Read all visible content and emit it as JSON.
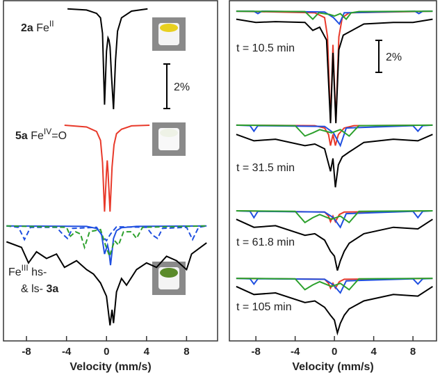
{
  "chart_data": [
    {
      "type": "line",
      "xlabel": "Velocity (mm/s)",
      "xlim": [
        -10.3,
        11.1
      ],
      "xticks": [
        -8,
        -4,
        0,
        4,
        8
      ],
      "ylim": [
        0,
        15.3
      ],
      "scale_bar": {
        "value": 2,
        "label": "2%"
      },
      "labels": [
        [
          {
            "t": "2a",
            "style": "bold"
          },
          {
            "t": " Fe"
          },
          {
            "t": "II",
            "style": "sup"
          }
        ],
        [
          {
            "t": "5a",
            "style": "bold"
          },
          {
            "t": " Fe"
          },
          {
            "t": "IV",
            "style": "sup"
          },
          {
            "t": "=O"
          }
        ],
        [
          {
            "t": "Fe"
          },
          {
            "t": "III",
            "style": "sup"
          },
          {
            "t": " hs-"
          }
        ],
        [
          {
            "t": "& ls- "
          },
          {
            "t": "3a",
            "style": "bold"
          }
        ]
      ],
      "series": [
        {
          "color": "#000000",
          "x": [
            -3.9,
            -2,
            -1,
            -0.6,
            -0.4,
            -0.2,
            0,
            0.15,
            0.25,
            0.35,
            0.5,
            0.7,
            0.9,
            1.1,
            1.5,
            2.5,
            4.1
          ],
          "values": [
            14.9,
            14.85,
            14.7,
            14.5,
            13.8,
            10.6,
            13.0,
            13.6,
            13.5,
            13.2,
            11.9,
            10.4,
            12.6,
            13.9,
            14.5,
            14.8,
            14.9
          ]
        },
        {
          "color": "#e8392a",
          "x": [
            -4.2,
            -2,
            -1,
            -0.6,
            -0.4,
            -0.2,
            0,
            0.07,
            0.15,
            0.35,
            0.55,
            0.75,
            1,
            1.5,
            2.5,
            4.3
          ],
          "values": [
            9.68,
            9.6,
            9.4,
            9.0,
            8.0,
            5.8,
            7.6,
            8.1,
            7.6,
            5.8,
            7.8,
            8.8,
            9.3,
            9.5,
            9.65,
            9.68
          ]
        },
        {
          "color": "#1f4fe0",
          "x": [
            -10,
            -2,
            -1,
            -0.5,
            -0.2,
            0.1,
            0.25,
            0.4,
            0.7,
            1,
            1.5,
            3,
            10
          ],
          "values": [
            5.16,
            5.14,
            5.05,
            4.8,
            3.9,
            4.3,
            4.0,
            3.4,
            4.6,
            4.95,
            5.08,
            5.14,
            5.16
          ]
        },
        {
          "color": "#1f4fe0",
          "dash": true,
          "x": [
            -10,
            -8.8,
            -8.2,
            -7.6,
            -5,
            -4.4,
            -3.9,
            -3.4,
            -1,
            -0.4,
            0,
            0.4,
            1,
            4,
            4.6,
            5.1,
            5.6,
            8,
            8.6,
            9.2,
            10
          ],
          "values": [
            5.16,
            5.1,
            4.55,
            5.1,
            5.1,
            4.8,
            4.6,
            5.05,
            5.1,
            4.7,
            4.5,
            4.8,
            5.12,
            5.1,
            4.75,
            4.6,
            5.05,
            5.1,
            4.55,
            5.1,
            5.16
          ]
        },
        {
          "color": "#2ca02c",
          "dash": true,
          "x": [
            -10,
            -4,
            -3.6,
            -3.1,
            -2.6,
            -2.2,
            -1.7,
            -0.6,
            -0.1,
            0.3,
            0.8,
            1.2,
            1.7,
            2.5,
            3,
            3.6,
            10
          ],
          "values": [
            5.16,
            5.1,
            4.7,
            4.9,
            4.8,
            4.2,
            4.9,
            5.0,
            4.3,
            3.8,
            4.5,
            4.3,
            4.9,
            4.9,
            4.6,
            5.1,
            5.16
          ]
        },
        {
          "color": "#000000",
          "x": [
            -10,
            -8.5,
            -7.8,
            -7,
            -6,
            -5,
            -4.2,
            -3,
            -2,
            -1.3,
            -0.6,
            0,
            0.35,
            0.55,
            0.7,
            1,
            1.5,
            2,
            3,
            4,
            5,
            6,
            7,
            8,
            8.5,
            10
          ],
          "values": [
            4.45,
            4.2,
            3.5,
            4.0,
            3.7,
            3.9,
            3.3,
            3.6,
            3.2,
            3.0,
            2.6,
            2.0,
            0.7,
            1.4,
            0.8,
            2.2,
            2.8,
            2.5,
            3.2,
            3.5,
            3.3,
            3.8,
            3.6,
            3.2,
            3.9,
            4.4
          ]
        }
      ]
    },
    {
      "type": "line",
      "xlabel": "Velocity (mm/s)",
      "xlim": [
        -10.7,
        10.4
      ],
      "xticks": [
        -8,
        -4,
        0,
        4,
        8
      ],
      "ylim": [
        0,
        21.3
      ],
      "scale_bar": {
        "value": 2,
        "label": "2%"
      },
      "labels": [
        [
          {
            "t": "t = 10.5 min"
          }
        ],
        [
          {
            "t": "t = 31.5 min"
          }
        ],
        [
          {
            "t": "t = 61.8 min"
          }
        ],
        [
          {
            "t": "t = 105 min"
          }
        ]
      ],
      "series": [
        {
          "color": "#e8392a",
          "x": [
            -10,
            -2,
            -1,
            -0.7,
            -0.4,
            -0.15,
            0.15,
            0.45,
            0.8,
            1.5,
            10
          ],
          "values": [
            20.6,
            20.5,
            20.2,
            19,
            13.7,
            18.5,
            13.7,
            19,
            20.2,
            20.5,
            20.6
          ]
        },
        {
          "color": "#1f4fe0",
          "x": [
            -10,
            -8.2,
            -7.8,
            -7.4,
            -1,
            -0.1,
            0.5,
            1,
            8.2,
            8.6,
            9,
            10
          ],
          "values": [
            20.6,
            20.6,
            20.45,
            20.6,
            20.55,
            20.2,
            19.8,
            20.5,
            20.6,
            20.45,
            20.6,
            20.6
          ]
        },
        {
          "color": "#2ca02c",
          "x": [
            -10,
            -3,
            -2.2,
            -1.6,
            -0.5,
            0,
            0.6,
            1.2,
            1.7,
            2.5,
            10
          ],
          "values": [
            20.6,
            20.58,
            20.1,
            20.5,
            20.4,
            20.3,
            20.45,
            20.1,
            20.5,
            20.58,
            20.6
          ]
        },
        {
          "color": "#000000",
          "x": [
            -10,
            -8,
            -6,
            -3,
            -2.2,
            -1.5,
            -0.8,
            -0.4,
            -0.15,
            0.15,
            0.45,
            0.9,
            1.5,
            3,
            6,
            8,
            10
          ],
          "values": [
            20.1,
            19.9,
            19.95,
            19.9,
            19.4,
            19.6,
            18.8,
            13.6,
            18.0,
            13.6,
            18.2,
            19.1,
            19.3,
            19.8,
            19.9,
            19.9,
            20.1
          ]
        },
        {
          "color": "#e8392a",
          "x": [
            -10,
            -2,
            -1,
            -0.6,
            -0.4,
            -0.15,
            0.1,
            0.4,
            1,
            2,
            10
          ],
          "values": [
            13.48,
            13.45,
            13.3,
            12.9,
            12.2,
            12.9,
            12.2,
            12.9,
            13.3,
            13.45,
            13.48
          ]
        },
        {
          "color": "#1f4fe0",
          "x": [
            -10,
            -8.6,
            -8.2,
            -7.8,
            -1,
            -0.1,
            0.6,
            1.2,
            8,
            8.5,
            9,
            10
          ],
          "values": [
            13.48,
            13.45,
            13.1,
            13.45,
            13.4,
            13.0,
            12.2,
            13.3,
            13.45,
            13.1,
            13.45,
            13.48
          ]
        },
        {
          "color": "#2ca02c",
          "x": [
            -10,
            -4,
            -3,
            -2.2,
            -1.5,
            -0.3,
            0.6,
            1.5,
            2.5,
            10
          ],
          "values": [
            13.48,
            13.45,
            12.8,
            13.0,
            13.2,
            13.0,
            13.2,
            12.8,
            13.45,
            13.48
          ]
        },
        {
          "color": "#000000",
          "x": [
            -10,
            -8.2,
            -6,
            -3,
            -2,
            -1,
            -0.4,
            -0.15,
            0.1,
            0.4,
            0.8,
            1.5,
            3,
            6,
            8.5,
            10
          ],
          "values": [
            12.9,
            12.5,
            12.6,
            12.2,
            12.3,
            12.0,
            10.6,
            11.4,
            9.6,
            11.0,
            11.5,
            11.8,
            12.4,
            12.6,
            12.5,
            12.9
          ]
        },
        {
          "color": "#e8392a",
          "x": [
            -10,
            -1,
            -0.6,
            -0.4,
            -0.15,
            0.1,
            0.5,
            1,
            10
          ],
          "values": [
            8.13,
            8.05,
            7.8,
            7.45,
            7.8,
            7.45,
            7.9,
            8.05,
            8.13
          ]
        },
        {
          "color": "#1f4fe0",
          "x": [
            -10,
            -8.6,
            -8.2,
            -7.8,
            -1,
            -0.1,
            0.6,
            1.2,
            8,
            8.5,
            9,
            10
          ],
          "values": [
            8.13,
            8.1,
            7.7,
            8.1,
            8.05,
            7.7,
            7.1,
            7.95,
            8.1,
            7.7,
            8.1,
            8.13
          ]
        },
        {
          "color": "#2ca02c",
          "x": [
            -10,
            -4,
            -3,
            -2.2,
            -1.5,
            -0.3,
            0.6,
            1.5,
            2.5,
            10
          ],
          "values": [
            8.13,
            8.1,
            7.4,
            7.7,
            7.9,
            7.6,
            7.8,
            7.4,
            8.1,
            8.13
          ]
        },
        {
          "color": "#000000",
          "x": [
            -10,
            -8.2,
            -6,
            -3,
            -2,
            -1,
            -0.4,
            0,
            0.3,
            0.6,
            1,
            1.5,
            3,
            6,
            8.5,
            10
          ],
          "values": [
            7.6,
            7.1,
            7.2,
            6.6,
            6.7,
            6.3,
            5.6,
            5.3,
            4.4,
            5.0,
            5.6,
            6.1,
            6.7,
            7.1,
            7.0,
            7.6
          ]
        },
        {
          "color": "#e8392a",
          "x": [
            -10,
            -1,
            -0.6,
            -0.4,
            -0.15,
            0.1,
            0.5,
            1,
            10
          ],
          "values": [
            3.91,
            3.85,
            3.6,
            3.3,
            3.6,
            3.3,
            3.7,
            3.85,
            3.91
          ]
        },
        {
          "color": "#1f4fe0",
          "x": [
            -10,
            -8.6,
            -8.2,
            -7.8,
            -1,
            -0.1,
            0.6,
            1.2,
            8,
            8.5,
            9,
            10
          ],
          "values": [
            3.91,
            3.88,
            3.55,
            3.88,
            3.85,
            3.5,
            3.0,
            3.75,
            3.88,
            3.55,
            3.88,
            3.91
          ]
        },
        {
          "color": "#2ca02c",
          "x": [
            -10,
            -4,
            -3,
            -2.2,
            -1.5,
            -0.3,
            0.6,
            1.5,
            2.5,
            10
          ],
          "values": [
            3.91,
            3.88,
            3.2,
            3.5,
            3.7,
            3.4,
            3.6,
            3.2,
            3.88,
            3.91
          ]
        },
        {
          "color": "#000000",
          "x": [
            -10,
            -8.2,
            -6,
            -3,
            -2,
            -1,
            -0.4,
            0,
            0.3,
            0.6,
            1,
            1.5,
            3,
            6,
            8.5,
            10
          ],
          "values": [
            3.4,
            2.9,
            3.0,
            2.4,
            2.5,
            2.1,
            1.6,
            1.3,
            0.5,
            1.1,
            1.6,
            2.0,
            2.5,
            2.9,
            2.8,
            3.4
          ]
        }
      ]
    }
  ]
}
